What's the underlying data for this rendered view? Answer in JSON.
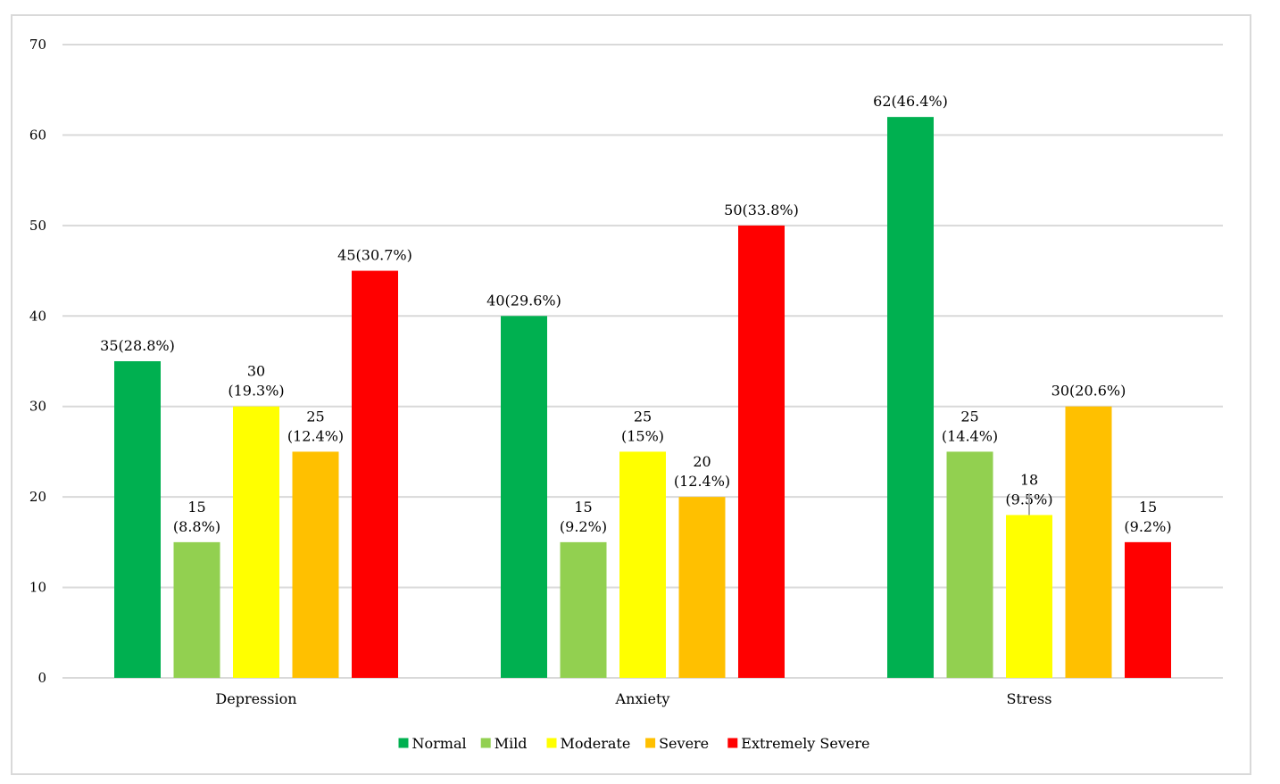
{
  "chart_data": {
    "type": "bar",
    "title": "",
    "xlabel": "",
    "ylabel": "",
    "ylim": [
      0,
      70
    ],
    "yticks": [
      0,
      10,
      20,
      30,
      40,
      50,
      60,
      70
    ],
    "grid": true,
    "legend_position": "bottom",
    "categories": [
      "Depression",
      "Anxiety",
      "Stress"
    ],
    "series": [
      {
        "name": "Normal",
        "color": "#00b050",
        "values": [
          35,
          40,
          62
        ],
        "labels": [
          [
            "35(28.8%)"
          ],
          [
            "40(29.6%)"
          ],
          [
            "62(46.4%)"
          ]
        ]
      },
      {
        "name": "Mild",
        "color": "#92d050",
        "values": [
          15,
          15,
          25
        ],
        "labels": [
          [
            "15",
            "(8.8%)"
          ],
          [
            "15",
            "(9.2%)"
          ],
          [
            "25",
            "(14.4%)"
          ]
        ]
      },
      {
        "name": "Moderate",
        "color": "#ffff00",
        "values": [
          30,
          25,
          18
        ],
        "labels": [
          [
            "30",
            "(19.3%)"
          ],
          [
            "25",
            "(15%)"
          ],
          [
            "18",
            "(9.5%)"
          ]
        ]
      },
      {
        "name": "Severe",
        "color": "#ffc000",
        "values": [
          25,
          20,
          30
        ],
        "labels": [
          [
            "25",
            "(12.4%)"
          ],
          [
            "20",
            "(12.4%)"
          ],
          [
            "30(20.6%)"
          ]
        ]
      },
      {
        "name": "Extremely Severe",
        "color": "#ff0000",
        "values": [
          45,
          50,
          15
        ],
        "labels": [
          [
            "45(30.7%)"
          ],
          [
            "50(33.8%)"
          ],
          [
            "15",
            "(9.2%)"
          ]
        ]
      }
    ]
  }
}
